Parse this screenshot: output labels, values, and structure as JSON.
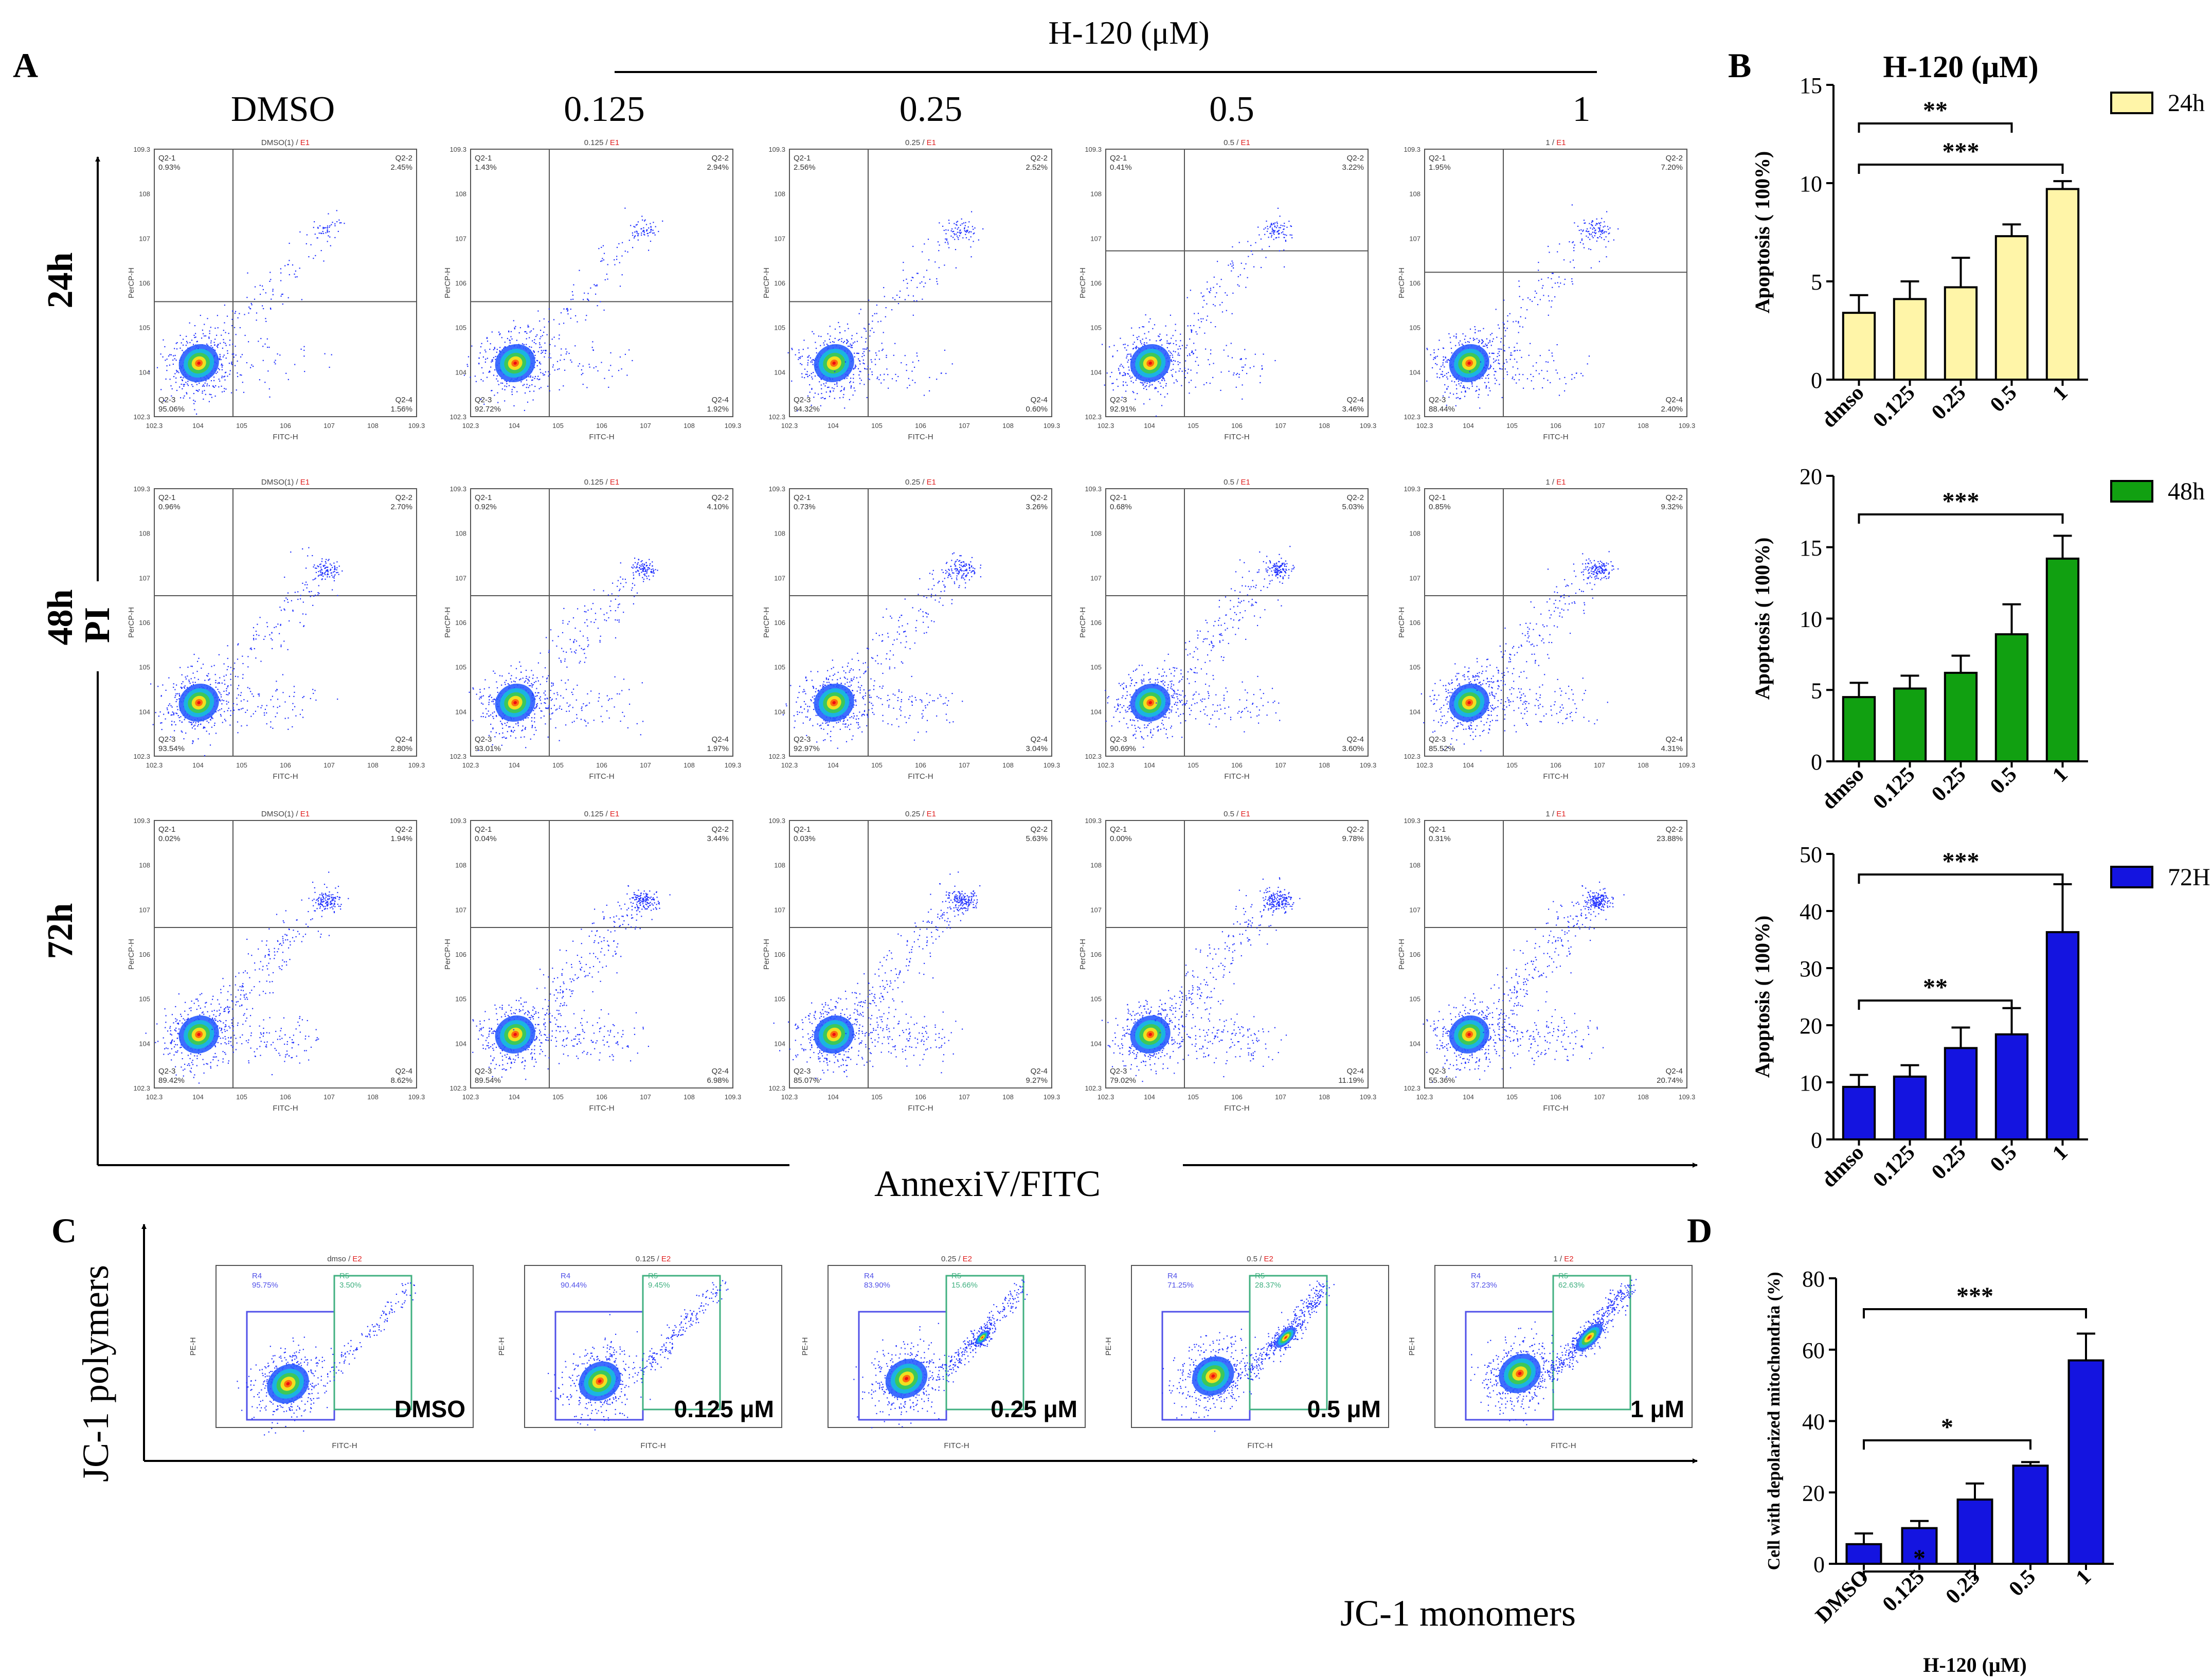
{
  "panel_labels": {
    "A": "A",
    "B": "B",
    "C": "C",
    "D": "D"
  },
  "panel_a": {
    "drug_header": "H-120 (μM)",
    "columns": [
      "DMSO",
      "0.125",
      "0.25",
      "0.5",
      "1"
    ],
    "rows": [
      "24h",
      "48h",
      "72h"
    ],
    "y_axis_label": "PI",
    "x_axis_label": "AnnexiV/FITC",
    "plot_titles": [
      "DMSO(1)",
      "0.125",
      "0.25",
      "0.5",
      "1"
    ],
    "plot_title_suffix": "E1",
    "plot_xlabel": "FITC-H",
    "plot_ylabel": "PerCP-H",
    "quadrant_names": {
      "q1": "Q2-1",
      "q2": "Q2-2",
      "q3": "Q2-3",
      "q4": "Q2-4"
    },
    "quadrants": [
      [
        [
          "0.93%",
          "2.45%",
          "95.06%",
          "1.56%"
        ],
        [
          "1.43%",
          "2.94%",
          "92.72%",
          "1.92%"
        ],
        [
          "2.56%",
          "2.52%",
          "94.32%",
          "0.60%"
        ],
        [
          "0.41%",
          "3.22%",
          "92.91%",
          "3.46%"
        ],
        [
          "1.95%",
          "7.20%",
          "88.44%",
          "2.40%"
        ]
      ],
      [
        [
          "0.96%",
          "2.70%",
          "93.54%",
          "2.80%"
        ],
        [
          "0.92%",
          "4.10%",
          "93.01%",
          "1.97%"
        ],
        [
          "0.73%",
          "3.26%",
          "92.97%",
          "3.04%"
        ],
        [
          "0.68%",
          "5.03%",
          "90.69%",
          "3.60%"
        ],
        [
          "0.85%",
          "9.32%",
          "85.52%",
          "4.31%"
        ]
      ],
      [
        [
          "0.02%",
          "1.94%",
          "89.42%",
          "8.62%"
        ],
        [
          "0.04%",
          "3.44%",
          "89.54%",
          "6.98%"
        ],
        [
          "0.03%",
          "5.63%",
          "85.07%",
          "9.27%"
        ],
        [
          "0.00%",
          "9.78%",
          "79.02%",
          "11.19%"
        ],
        [
          "0.31%",
          "23.88%",
          "55.36%",
          "20.74%"
        ]
      ]
    ]
  },
  "panel_c": {
    "y_axis_label": "JC-1 polymers",
    "x_axis_label": "JC-1 monomers",
    "plot_titles": [
      "dmso",
      "0.125",
      "0.25",
      "0.5",
      "1"
    ],
    "plot_title_suffix": "E2",
    "conditions": [
      "DMSO",
      "0.125 μM",
      "0.25 μM",
      "0.5 μM",
      "1 μM"
    ],
    "plot_xlabel": "FITC-H",
    "plot_ylabel": "PE-H",
    "gate_names": {
      "r4": "R4",
      "r5": "R5"
    },
    "gates": [
      [
        "95.75%",
        "3.50%"
      ],
      [
        "90.44%",
        "9.45%"
      ],
      [
        "83.90%",
        "15.66%"
      ],
      [
        "71.25%",
        "28.37%"
      ],
      [
        "37.23%",
        "62.63%"
      ]
    ]
  },
  "colors": {
    "yellow": "#fff5a8",
    "green": "#11a011",
    "blue": "#1414e0",
    "dot": "#2030ff",
    "gate_blue": "#5050e8",
    "gate_green": "#40b080",
    "title_red": "#e02020"
  },
  "chart_data": [
    {
      "type": "bar",
      "panel": "B",
      "title": "H-120 (μM)",
      "legend": "24h",
      "color": "#fff5a8",
      "categories": [
        "dmso",
        "0.125",
        "0.25",
        "0.5",
        "1"
      ],
      "values": [
        3.4,
        4.1,
        4.7,
        7.3,
        9.7
      ],
      "errors": [
        0.9,
        0.9,
        1.5,
        0.6,
        0.4
      ],
      "ylabel": "Apoptosis ( 100%)",
      "ylim": [
        0,
        15
      ],
      "yticks": [
        0,
        5,
        10,
        15
      ],
      "significance": [
        {
          "from": 0,
          "to": 4,
          "label": "***"
        },
        {
          "from": 0,
          "to": 3,
          "label": "**"
        }
      ]
    },
    {
      "type": "bar",
      "panel": "B",
      "legend": "48h",
      "color": "#11a011",
      "categories": [
        "dmso",
        "0.125",
        "0.25",
        "0.5",
        "1"
      ],
      "values": [
        4.5,
        5.1,
        6.2,
        8.9,
        14.2
      ],
      "errors": [
        1.0,
        0.9,
        1.2,
        2.1,
        1.6
      ],
      "ylabel": "Apoptosis ( 100%)",
      "ylim": [
        0,
        20
      ],
      "yticks": [
        0,
        5,
        10,
        15,
        20
      ],
      "significance": [
        {
          "from": 0,
          "to": 4,
          "label": "***"
        }
      ]
    },
    {
      "type": "bar",
      "panel": "B",
      "legend": "72H",
      "color": "#1414e0",
      "categories": [
        "dmso",
        "0.125",
        "0.25",
        "0.5",
        "1"
      ],
      "values": [
        9.2,
        11.0,
        16.0,
        18.4,
        36.3
      ],
      "errors": [
        2.1,
        2.0,
        3.6,
        4.6,
        8.4
      ],
      "ylabel": "Apoptosis ( 100%)",
      "ylim": [
        0,
        50
      ],
      "yticks": [
        0,
        10,
        20,
        30,
        40,
        50
      ],
      "significance": [
        {
          "from": 0,
          "to": 4,
          "label": "***"
        },
        {
          "from": 0,
          "to": 3,
          "label": "**"
        }
      ]
    },
    {
      "type": "bar",
      "panel": "D",
      "color": "#1414e0",
      "categories": [
        "DMSO",
        "0.125",
        "0.25",
        "0.5",
        "1"
      ],
      "values": [
        5.5,
        10.0,
        18.0,
        27.5,
        57.0
      ],
      "errors": [
        3.0,
        2.0,
        4.5,
        1.0,
        7.5
      ],
      "xlabel": "H-120 (μM)",
      "ylabel": "Cell with depolarized mitochondria (%)",
      "ylim": [
        0,
        80
      ],
      "yticks": [
        0,
        20,
        40,
        60,
        80
      ],
      "significance": [
        {
          "from": 0,
          "to": 4,
          "label": "***"
        },
        {
          "from": 0,
          "to": 3,
          "label": "*"
        },
        {
          "from": 0,
          "to": 2,
          "label": "*"
        }
      ]
    }
  ]
}
